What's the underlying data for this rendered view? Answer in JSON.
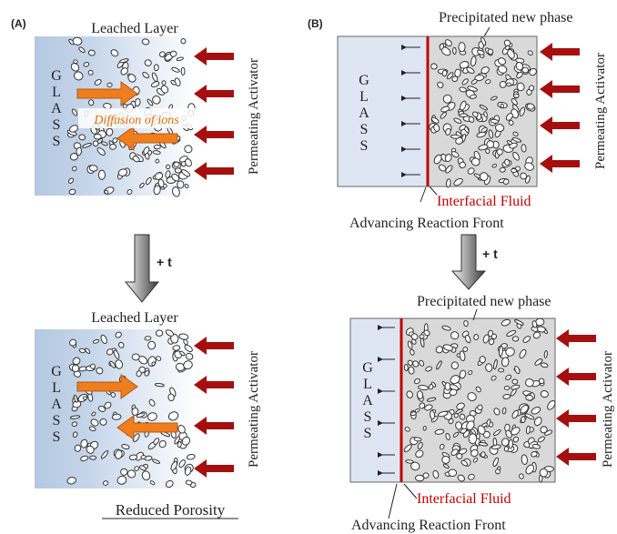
{
  "panel_a": {
    "label": "(A)",
    "top": {
      "layer_label": "Leached Layer",
      "glass_label": "GLASS",
      "activator_label": "Permeating Activator",
      "diffusion_label": "Diffusion of ions"
    },
    "time_step": "+ t",
    "bottom": {
      "layer_label": "Leached Layer",
      "glass_label": "GLASS",
      "activator_label": "Permeating Activator"
    },
    "caption": "Reduced Porosity"
  },
  "panel_b": {
    "label": "(B)",
    "top": {
      "phase_label": "Precipitated new phase",
      "glass_label": "GLASS",
      "activator_label": "Permeating Activator",
      "fluid_label": "Interfacial Fluid",
      "front_label": "Advancing Reaction Front"
    },
    "time_step": "+ t",
    "bottom": {
      "phase_label": "Precipitated new phase",
      "glass_label": "GLASS",
      "activator_label": "Permeating Activator",
      "fluid_label": "Interfacial Fluid",
      "front_label": "Advancing Reaction Front"
    }
  }
}
